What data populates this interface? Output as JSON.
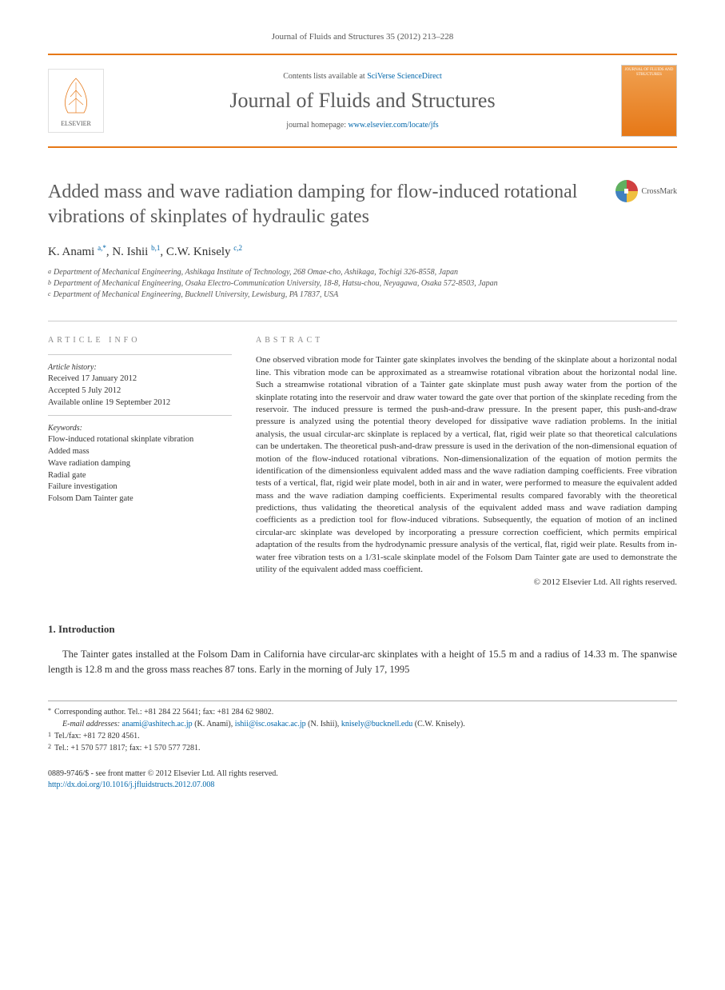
{
  "journal_ref": "Journal of Fluids and Structures 35 (2012) 213–228",
  "header": {
    "contents_prefix": "Contents lists available at ",
    "contents_link": "SciVerse ScienceDirect",
    "journal_title": "Journal of Fluids and Structures",
    "homepage_prefix": "journal homepage: ",
    "homepage_url": "www.elsevier.com/locate/jfs",
    "elsevier_label": "ELSEVIER",
    "cover_text": "JOURNAL OF FLUIDS AND STRUCTURES"
  },
  "article": {
    "title": "Added mass and wave radiation damping for flow-induced rotational vibrations of skinplates of hydraulic gates",
    "crossmark_label": "CrossMark",
    "authors_html": "K. Anami <sup>a,*</sup>, N. Ishii <sup>b,1</sup>, C.W. Knisely <sup>c,2</sup>",
    "affiliations": [
      {
        "sup": "a",
        "text": "Department of Mechanical Engineering, Ashikaga Institute of Technology, 268 Omae-cho, Ashikaga, Tochigi 326-8558, Japan"
      },
      {
        "sup": "b",
        "text": "Department of Mechanical Engineering, Osaka Electro-Communication University, 18-8, Hatsu-chou, Neyagawa, Osaka 572-8503, Japan"
      },
      {
        "sup": "c",
        "text": "Department of Mechanical Engineering, Bucknell University, Lewisburg, PA 17837, USA"
      }
    ]
  },
  "info": {
    "section_label": "ARTICLE INFO",
    "history_label": "Article history:",
    "history": [
      "Received 17 January 2012",
      "Accepted 5 July 2012",
      "Available online 19 September 2012"
    ],
    "keywords_label": "Keywords:",
    "keywords": [
      "Flow-induced rotational skinplate vibration",
      "Added mass",
      "Wave radiation damping",
      "Radial gate",
      "Failure investigation",
      "Folsom Dam Tainter gate"
    ]
  },
  "abstract": {
    "section_label": "ABSTRACT",
    "text": "One observed vibration mode for Tainter gate skinplates involves the bending of the skinplate about a horizontal nodal line. This vibration mode can be approximated as a streamwise rotational vibration about the horizontal nodal line. Such a streamwise rotational vibration of a Tainter gate skinplate must push away water from the portion of the skinplate rotating into the reservoir and draw water toward the gate over that portion of the skinplate receding from the reservoir. The induced pressure is termed the push-and-draw pressure. In the present paper, this push-and-draw pressure is analyzed using the potential theory developed for dissipative wave radiation problems. In the initial analysis, the usual circular-arc skinplate is replaced by a vertical, flat, rigid weir plate so that theoretical calculations can be undertaken. The theoretical push-and-draw pressure is used in the derivation of the non-dimensional equation of motion of the flow-induced rotational vibrations. Non-dimensionalization of the equation of motion permits the identification of the dimensionless equivalent added mass and the wave radiation damping coefficients. Free vibration tests of a vertical, flat, rigid weir plate model, both in air and in water, were performed to measure the equivalent added mass and the wave radiation damping coefficients. Experimental results compared favorably with the theoretical predictions, thus validating the theoretical analysis of the equivalent added mass and wave radiation damping coefficients as a prediction tool for flow-induced vibrations. Subsequently, the equation of motion of an inclined circular-arc skinplate was developed by incorporating a pressure correction coefficient, which permits empirical adaptation of the results from the hydrodynamic pressure analysis of the vertical, flat, rigid weir plate. Results from in-water free vibration tests on a 1/31-scale skinplate model of the Folsom Dam Tainter gate are used to demonstrate the utility of the equivalent added mass coefficient.",
    "copyright": "© 2012 Elsevier Ltd. All rights reserved."
  },
  "intro": {
    "heading": "1.  Introduction",
    "text": "The Tainter gates installed at the Folsom Dam in California have circular-arc skinplates with a height of 15.5 m and a radius of 14.33 m. The spanwise length is 12.8 m and the gross mass reaches 87 tons. Early in the morning of July 17, 1995"
  },
  "footnotes": {
    "corr": {
      "sup": "*",
      "text": "Corresponding author. Tel.: +81 284 22 5641; fax: +81 284 62 9802."
    },
    "emails_label": "E-mail addresses:",
    "emails": [
      {
        "addr": "anami@ashitech.ac.jp",
        "who": "(K. Anami)"
      },
      {
        "addr": "ishii@isc.osakac.ac.jp",
        "who": "(N. Ishii)"
      },
      {
        "addr": "knisely@bucknell.edu",
        "who": "(C.W. Knisely)."
      }
    ],
    "notes": [
      {
        "sup": "1",
        "text": "Tel./fax: +81 72 820 4561."
      },
      {
        "sup": "2",
        "text": "Tel.: +1 570 577 1817; fax: +1 570 577 7281."
      }
    ]
  },
  "bottom": {
    "issn_line": "0889-9746/$ - see front matter © 2012 Elsevier Ltd. All rights reserved.",
    "doi_url": "http://dx.doi.org/10.1016/j.jfluidstructs.2012.07.008"
  },
  "colors": {
    "accent": "#e67817",
    "link": "#0066aa",
    "text": "#333333",
    "muted": "#555555",
    "rule": "#cccccc"
  },
  "typography": {
    "body_family": "Georgia, Times New Roman, serif",
    "title_size_pt": 24,
    "journal_title_size_pt": 26,
    "body_size_pt": 12.5,
    "abstract_size_pt": 11,
    "small_size_pt": 10
  }
}
